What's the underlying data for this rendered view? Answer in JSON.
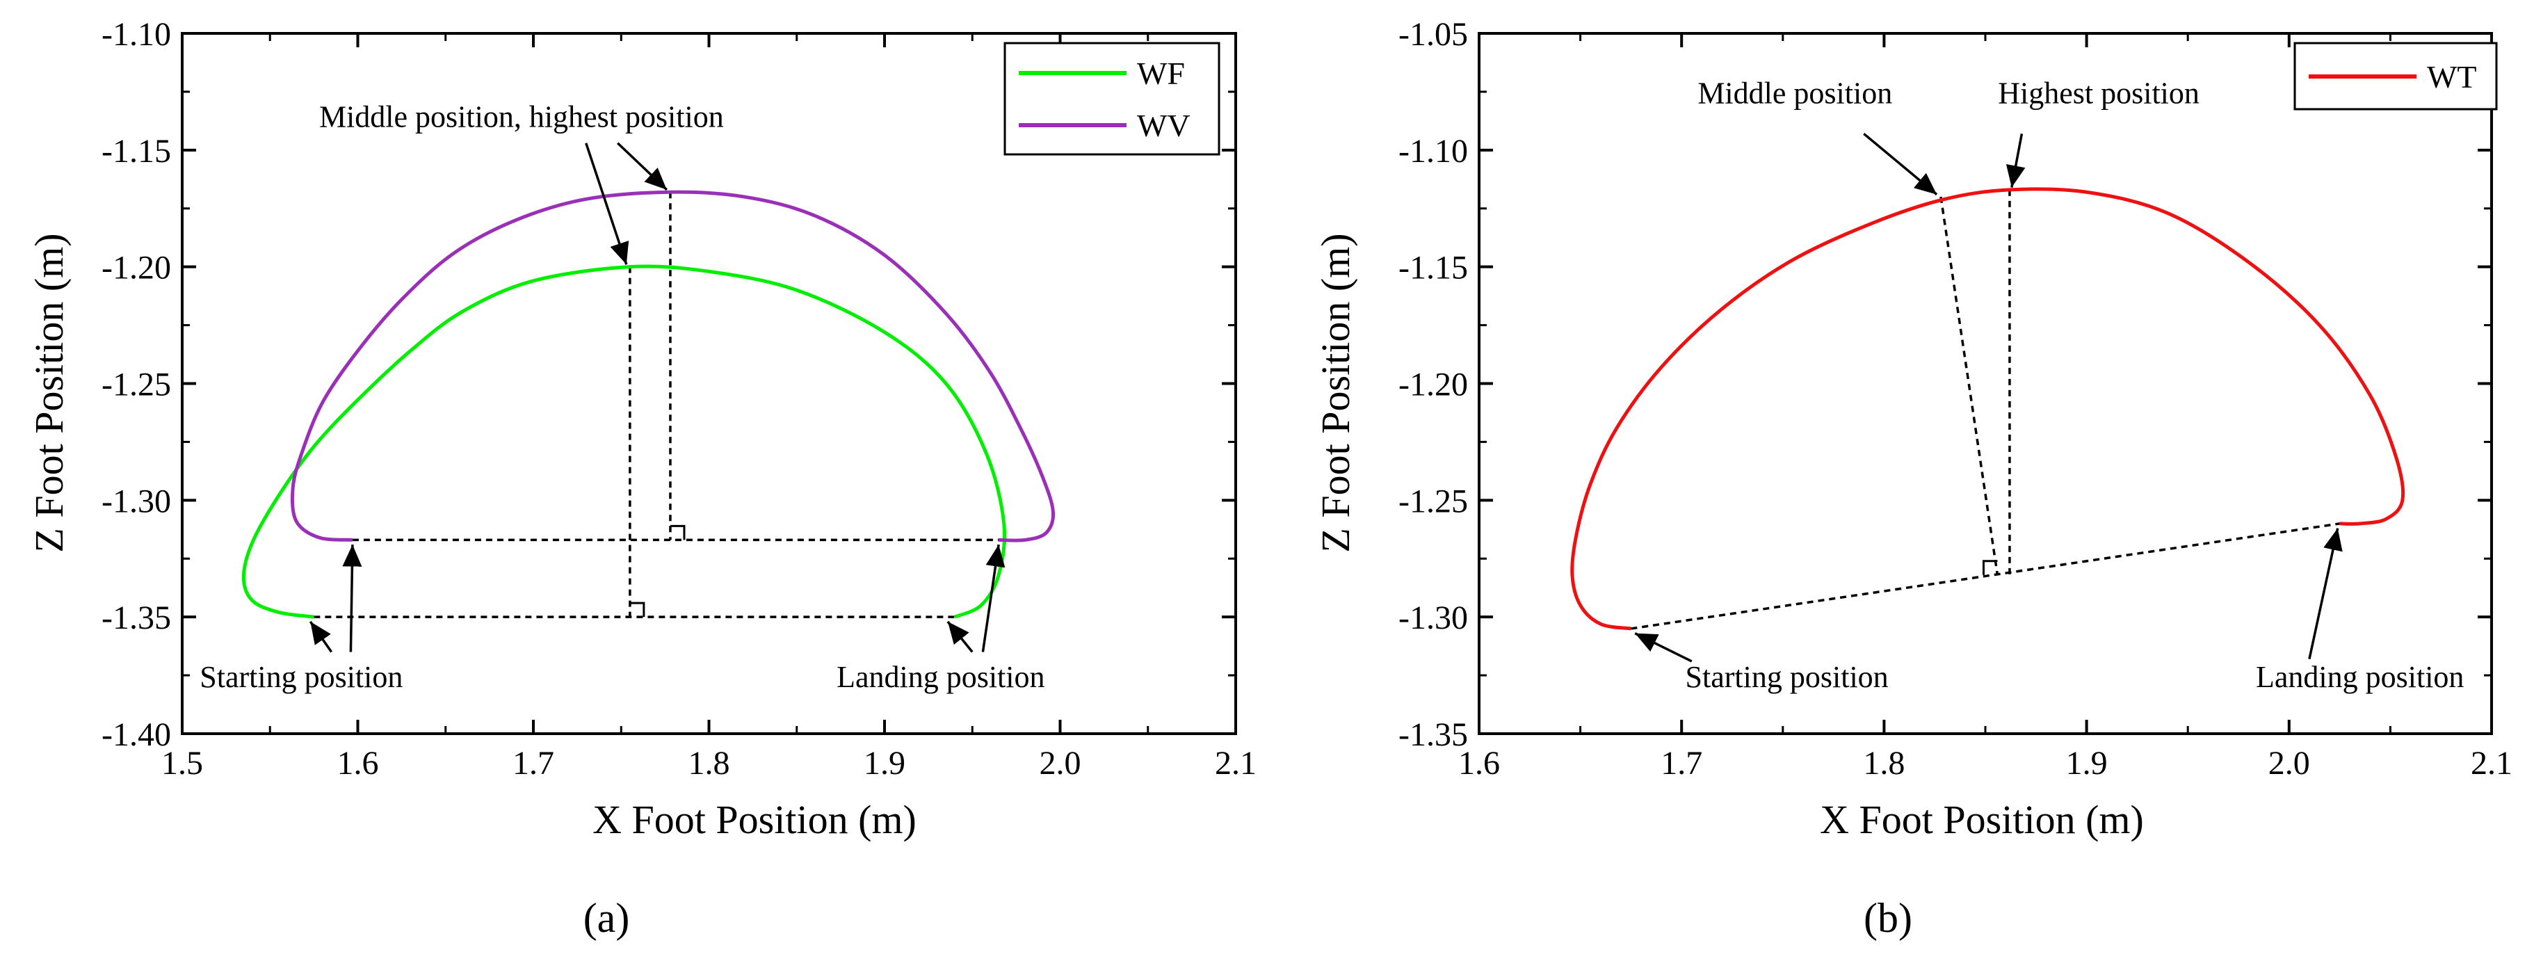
{
  "chart_data": [
    {
      "type": "line",
      "panel_label": "(a)",
      "xlabel": "X Foot Position (m)",
      "ylabel": "Z Foot Position (m)",
      "xlim": [
        1.5,
        2.1
      ],
      "ylim": [
        -1.4,
        -1.1
      ],
      "xticks": [
        1.5,
        1.6,
        1.7,
        1.8,
        1.9,
        2.0,
        2.1
      ],
      "xtick_labels": [
        "1.5",
        "1.6",
        "1.7",
        "1.8",
        "1.9",
        "2.0",
        "2.1"
      ],
      "yticks": [
        -1.1,
        -1.15,
        -1.2,
        -1.25,
        -1.3,
        -1.35,
        -1.4
      ],
      "ytick_labels": [
        "-1.10",
        "-1.15",
        "-1.20",
        "-1.25",
        "-1.30",
        "-1.35",
        "-1.40"
      ],
      "legend_position": "top-right",
      "series": [
        {
          "name": "WF",
          "color": "#00ee00",
          "points": [
            [
              1.575,
              -1.35
            ],
            [
              1.555,
              -1.348
            ],
            [
              1.54,
              -1.343
            ],
            [
              1.535,
              -1.333
            ],
            [
              1.54,
              -1.318
            ],
            [
              1.555,
              -1.298
            ],
            [
              1.575,
              -1.277
            ],
            [
              1.6,
              -1.257
            ],
            [
              1.63,
              -1.236
            ],
            [
              1.66,
              -1.219
            ],
            [
              1.7,
              -1.206
            ],
            [
              1.755,
              -1.2
            ],
            [
              1.8,
              -1.202
            ],
            [
              1.85,
              -1.21
            ],
            [
              1.9,
              -1.228
            ],
            [
              1.935,
              -1.25
            ],
            [
              1.958,
              -1.28
            ],
            [
              1.968,
              -1.31
            ],
            [
              1.965,
              -1.332
            ],
            [
              1.955,
              -1.345
            ],
            [
              1.94,
              -1.35
            ]
          ]
        },
        {
          "name": "WV",
          "color": "#9b30b8",
          "points": [
            [
              1.597,
              -1.317
            ],
            [
              1.578,
              -1.316
            ],
            [
              1.565,
              -1.309
            ],
            [
              1.563,
              -1.295
            ],
            [
              1.568,
              -1.28
            ],
            [
              1.58,
              -1.258
            ],
            [
              1.6,
              -1.236
            ],
            [
              1.625,
              -1.214
            ],
            [
              1.655,
              -1.194
            ],
            [
              1.69,
              -1.18
            ],
            [
              1.73,
              -1.171
            ],
            [
              1.778,
              -1.168
            ],
            [
              1.82,
              -1.17
            ],
            [
              1.86,
              -1.178
            ],
            [
              1.9,
              -1.195
            ],
            [
              1.935,
              -1.22
            ],
            [
              1.96,
              -1.245
            ],
            [
              1.978,
              -1.27
            ],
            [
              1.99,
              -1.29
            ],
            [
              1.996,
              -1.305
            ],
            [
              1.992,
              -1.314
            ],
            [
              1.98,
              -1.317
            ],
            [
              1.965,
              -1.317
            ]
          ]
        }
      ],
      "reference_lines": [
        {
          "from": [
            1.597,
            -1.317
          ],
          "to": [
            1.965,
            -1.317
          ]
        },
        {
          "from": [
            1.575,
            -1.35
          ],
          "to": [
            1.94,
            -1.35
          ]
        },
        {
          "from": [
            1.755,
            -1.2
          ],
          "to": [
            1.755,
            -1.35
          ]
        },
        {
          "from": [
            1.778,
            -1.168
          ],
          "to": [
            1.778,
            -1.317
          ]
        }
      ],
      "right_angle_marks": [
        {
          "at": [
            1.778,
            -1.317
          ],
          "side": "right"
        },
        {
          "at": [
            1.755,
            -1.35
          ],
          "side": "right"
        }
      ],
      "annotations": [
        {
          "text": "Middle position, highest position",
          "anchor": [
            1.578,
            -1.14
          ],
          "align": "start",
          "arrows": [
            {
              "from": [
                1.73,
                -1.147
              ],
              "to": [
                1.753,
                -1.199
              ]
            },
            {
              "from": [
                1.748,
                -1.147
              ],
              "to": [
                1.776,
                -1.167
              ]
            }
          ]
        },
        {
          "text": "Starting position",
          "anchor": [
            1.51,
            -1.38
          ],
          "align": "start",
          "arrows": [
            {
              "from": [
                1.596,
                -1.365
              ],
              "to": [
                1.597,
                -1.319
              ]
            },
            {
              "from": [
                1.585,
                -1.365
              ],
              "to": [
                1.573,
                -1.352
              ]
            }
          ]
        },
        {
          "text": "Landing position",
          "anchor": [
            1.932,
            -1.38
          ],
          "align": "middle",
          "arrows": [
            {
              "from": [
                1.956,
                -1.365
              ],
              "to": [
                1.965,
                -1.319
              ]
            },
            {
              "from": [
                1.95,
                -1.365
              ],
              "to": [
                1.936,
                -1.352
              ]
            }
          ]
        }
      ]
    },
    {
      "type": "line",
      "panel_label": "(b)",
      "xlabel": "X Foot Position (m)",
      "ylabel": "Z Foot Position (m)",
      "xlim": [
        1.6,
        2.1
      ],
      "ylim": [
        -1.35,
        -1.05
      ],
      "xticks": [
        1.6,
        1.7,
        1.8,
        1.9,
        2.0,
        2.1
      ],
      "xtick_labels": [
        "1.6",
        "1.7",
        "1.8",
        "1.9",
        "2.0",
        "2.1"
      ],
      "yticks": [
        -1.05,
        -1.1,
        -1.15,
        -1.2,
        -1.25,
        -1.3,
        -1.35
      ],
      "ytick_labels": [
        "-1.05",
        "-1.10",
        "-1.15",
        "-1.20",
        "-1.25",
        "-1.30",
        "-1.35"
      ],
      "legend_position": "top-right",
      "series": [
        {
          "name": "WT",
          "color": "#ee1111",
          "points": [
            [
              1.675,
              -1.305
            ],
            [
              1.66,
              -1.303
            ],
            [
              1.65,
              -1.295
            ],
            [
              1.646,
              -1.282
            ],
            [
              1.648,
              -1.265
            ],
            [
              1.655,
              -1.243
            ],
            [
              1.668,
              -1.219
            ],
            [
              1.69,
              -1.193
            ],
            [
              1.72,
              -1.168
            ],
            [
              1.755,
              -1.147
            ],
            [
              1.795,
              -1.131
            ],
            [
              1.83,
              -1.121
            ],
            [
              1.862,
              -1.117
            ],
            [
              1.9,
              -1.118
            ],
            [
              1.94,
              -1.127
            ],
            [
              1.98,
              -1.148
            ],
            [
              2.015,
              -1.175
            ],
            [
              2.04,
              -1.205
            ],
            [
              2.053,
              -1.232
            ],
            [
              2.056,
              -1.25
            ],
            [
              2.048,
              -1.258
            ],
            [
              2.035,
              -1.26
            ],
            [
              2.025,
              -1.26
            ]
          ]
        }
      ],
      "reference_lines": [
        {
          "from": [
            1.675,
            -1.305
          ],
          "to": [
            2.025,
            -1.26
          ]
        },
        {
          "from": [
            1.828,
            -1.12
          ],
          "to": [
            1.856,
            -1.282
          ]
        },
        {
          "from": [
            1.862,
            -1.117
          ],
          "to": [
            1.862,
            -1.282
          ]
        }
      ],
      "right_angle_marks": [
        {
          "at": [
            1.856,
            -1.282
          ],
          "side": "left"
        }
      ],
      "annotations": [
        {
          "text": "Middle position",
          "anchor": [
            1.756,
            -1.08
          ],
          "align": "middle",
          "arrows": [
            {
              "from": [
                1.79,
                -1.093
              ],
              "to": [
                1.826,
                -1.119
              ]
            }
          ]
        },
        {
          "text": "Highest position",
          "anchor": [
            1.906,
            -1.08
          ],
          "align": "middle",
          "arrows": [
            {
              "from": [
                1.868,
                -1.093
              ],
              "to": [
                1.863,
                -1.116
              ]
            }
          ]
        },
        {
          "text": "Starting position",
          "anchor": [
            1.752,
            -1.33
          ],
          "align": "middle",
          "arrows": [
            {
              "from": [
                1.705,
                -1.319
              ],
              "to": [
                1.677,
                -1.307
              ]
            }
          ]
        },
        {
          "text": "Landing position",
          "anchor": [
            2.035,
            -1.33
          ],
          "align": "middle",
          "arrows": [
            {
              "from": [
                2.01,
                -1.318
              ],
              "to": [
                2.024,
                -1.262
              ]
            }
          ]
        }
      ]
    }
  ]
}
